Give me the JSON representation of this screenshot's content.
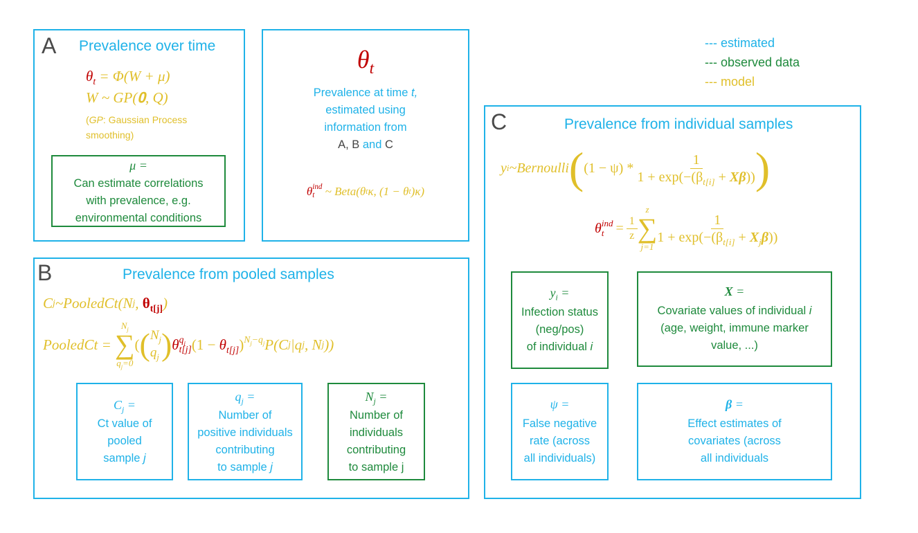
{
  "legend": {
    "items": [
      {
        "label": "--- estimated",
        "color": "#1fb2e8"
      },
      {
        "label": "--- observed data",
        "color": "#1e8a3c"
      },
      {
        "label": "--- model",
        "color": "#e0bf2a"
      }
    ]
  },
  "colors": {
    "estimated": "#1fb2e8",
    "observed": "#1e8a3c",
    "model": "#e0bf2a",
    "theta": "#c00000",
    "panel_letter": "#444444"
  },
  "panel_a": {
    "letter": "A",
    "title": "Prevalence over time",
    "eq1_lhs": "θ",
    "eq1_sub": "t",
    "eq1_rhs": " = Φ(W + μ)",
    "eq2": "W ~ GP(𝟎, Q)",
    "note_gp": "GP",
    "note_rest": ": Gaussian Process",
    "note_line2": "smoothing)",
    "note_open": "(",
    "mu_box": {
      "symbol": "μ =",
      "lines": [
        "Can estimate correlations",
        "with prevalence, e.g.",
        "environmental conditions"
      ]
    }
  },
  "panel_theta": {
    "symbol": "θ",
    "symbol_sub": "t",
    "lines": [
      "Prevalence at time ",
      "estimated using",
      "information from"
    ],
    "t_italic": "t,",
    "sources_a": "A, B",
    "sources_and": " and ",
    "sources_c": "C",
    "beta_lhs": "θ",
    "beta_sup": "ind",
    "beta_sub": "t",
    "beta_rhs": " ~ Beta(θ",
    "beta_rhs2": "κ, (1 − θ",
    "beta_rhs3": ")κ)"
  },
  "panel_b": {
    "letter": "B",
    "title": "Prevalence from pooled samples",
    "eq1": "C",
    "eq1_b": "~PooledCt(N",
    "eq1_c": ", ",
    "eq1_theta": "θ",
    "eq1_theta_sub": "t[j]",
    "eq1_end": ")",
    "eq2_lhs": "PooledCt = ",
    "sum_top": "N",
    "sum_top_sub": "j",
    "sum_bottom": "q",
    "sum_bottom_rest": "=0",
    "eq2_rest": "P(C",
    "eq2_rest2": "|q",
    "eq2_rest3": ", N",
    "eq2_rest4": "))",
    "boxes": [
      {
        "symbol": "C",
        "sub": "j",
        "eq": " =",
        "lines": [
          "Ct value of",
          "pooled",
          "sample "
        ],
        "italic_end": "j",
        "color": "#1fb2e8"
      },
      {
        "symbol": "q",
        "sub": "j",
        "eq": " =",
        "lines": [
          "Number of",
          "positive individuals",
          "contributing",
          "to sample "
        ],
        "italic_end": "j",
        "color": "#1fb2e8"
      },
      {
        "symbol": "N",
        "sub": "j",
        "eq": " =",
        "lines": [
          "Number of",
          "individuals",
          "contributing",
          "to sample j"
        ],
        "italic_end": "",
        "color": "#1e8a3c"
      }
    ]
  },
  "panel_c": {
    "letter": "C",
    "title": "Prevalence from individual samples",
    "eq1_lhs": "y",
    "eq1_lhs_sub": "i",
    "eq1_dist": "~Bernoulli",
    "eq1_factor": "(1 − ψ) * ",
    "eq1_num": "1",
    "eq1_den": "1 + exp(−(β",
    "eq1_den_sub": "t[i]",
    "eq1_den_end": " + ",
    "eq1_den_bold": "Xβ",
    "eq1_den_close": "))",
    "eq2_lhs": "θ",
    "eq2_sup": "ind",
    "eq2_sub": "t",
    "eq2_frac_num": "1",
    "eq2_frac_den": "z",
    "sum_top": "z",
    "sum_bottom": "j=1",
    "eq2_num": "1",
    "eq2_den": "1 + exp(−(β",
    "eq2_den_sub": "t[i]",
    "eq2_den_mid": " + ",
    "eq2_den_bold": "X",
    "eq2_den_bold_sub": "j",
    "eq2_den_bold2": "β",
    "eq2_den_close": "))",
    "boxes": [
      {
        "symbol": "y",
        "sub": "i",
        "eq": " =",
        "lines": [
          "Infection status",
          "(neg/pos)",
          "of individual "
        ],
        "italic_end": "i",
        "color": "#1e8a3c"
      },
      {
        "symbol": "X",
        "sub": "",
        "eq": " =",
        "lines": [
          "Covariate values of individual ",
          "(age, weight, immune marker",
          "value, ...)"
        ],
        "italic_end": "i",
        "color": "#1e8a3c"
      },
      {
        "symbol": "ψ",
        "sub": "",
        "eq": " =",
        "lines": [
          "False negative",
          "rate (across",
          "all individuals)"
        ],
        "italic_end": "",
        "color": "#1fb2e8"
      },
      {
        "symbol": "β",
        "sub": "",
        "eq": " =",
        "lines": [
          "Effect estimates of",
          "covariates (across",
          "all individuals"
        ],
        "italic_end": "",
        "color": "#1fb2e8"
      }
    ]
  }
}
